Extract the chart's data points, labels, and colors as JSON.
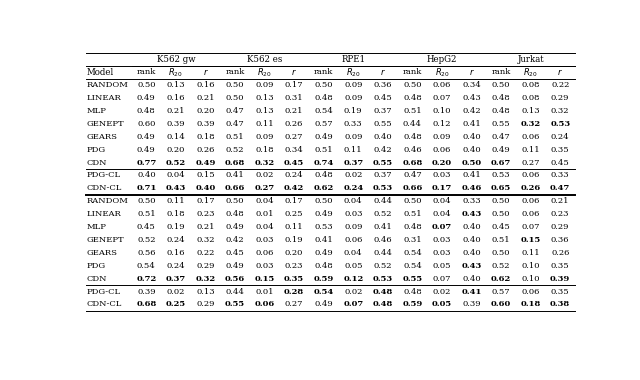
{
  "col_groups": [
    "K562 gw",
    "K562 es",
    "RPE1",
    "HepG2",
    "Jurkat"
  ],
  "rows_section1": [
    [
      "RANDOM",
      "0.50",
      "0.13",
      "0.16",
      "0.50",
      "0.09",
      "0.17",
      "0.50",
      "0.09",
      "0.36",
      "0.50",
      "0.06",
      "0.34",
      "0.50",
      "0.08",
      "0.22"
    ],
    [
      "LINEAR",
      "0.49",
      "0.16",
      "0.21",
      "0.50",
      "0.13",
      "0.31",
      "0.48",
      "0.09",
      "0.45",
      "0.48",
      "0.07",
      "0.43",
      "0.48",
      "0.08",
      "0.29"
    ],
    [
      "MLP",
      "0.48",
      "0.21",
      "0.20",
      "0.47",
      "0.13",
      "0.21",
      "0.54",
      "0.19",
      "0.37",
      "0.51",
      "0.10",
      "0.42",
      "0.48",
      "0.13",
      "0.32"
    ],
    [
      "GENEPT",
      "0.60",
      "0.39",
      "0.39",
      "0.47",
      "0.11",
      "0.26",
      "0.57",
      "0.33",
      "0.55",
      "0.44",
      "0.12",
      "0.41",
      "0.55",
      "0.32",
      "0.53"
    ],
    [
      "GEARS",
      "0.49",
      "0.14",
      "0.18",
      "0.51",
      "0.09",
      "0.27",
      "0.49",
      "0.09",
      "0.40",
      "0.48",
      "0.09",
      "0.40",
      "0.47",
      "0.06",
      "0.24"
    ],
    [
      "PDG",
      "0.49",
      "0.20",
      "0.26",
      "0.52",
      "0.18",
      "0.34",
      "0.51",
      "0.11",
      "0.42",
      "0.46",
      "0.06",
      "0.40",
      "0.49",
      "0.11",
      "0.35"
    ],
    [
      "CDN",
      "0.77",
      "0.52",
      "0.49",
      "0.68",
      "0.32",
      "0.45",
      "0.74",
      "0.37",
      "0.55",
      "0.68",
      "0.20",
      "0.50",
      "0.67",
      "0.27",
      "0.45"
    ]
  ],
  "bold_section1": [
    [
      false,
      false,
      false,
      false,
      false,
      false,
      false,
      false,
      false,
      false,
      false,
      false,
      false,
      false,
      false,
      false
    ],
    [
      false,
      false,
      false,
      false,
      false,
      false,
      false,
      false,
      false,
      false,
      false,
      false,
      false,
      false,
      false,
      false
    ],
    [
      false,
      false,
      false,
      false,
      false,
      false,
      false,
      false,
      false,
      false,
      false,
      false,
      false,
      false,
      false,
      false
    ],
    [
      false,
      false,
      false,
      false,
      false,
      false,
      false,
      false,
      false,
      false,
      false,
      false,
      false,
      false,
      true,
      true
    ],
    [
      false,
      false,
      false,
      false,
      false,
      false,
      false,
      false,
      false,
      false,
      false,
      false,
      false,
      false,
      false,
      false
    ],
    [
      false,
      false,
      false,
      false,
      false,
      false,
      false,
      false,
      false,
      false,
      false,
      false,
      false,
      false,
      false,
      false
    ],
    [
      false,
      true,
      true,
      true,
      true,
      true,
      true,
      true,
      true,
      true,
      true,
      true,
      true,
      true,
      false,
      false
    ]
  ],
  "rows_section2": [
    [
      "PDG-CL",
      "0.40",
      "0.04",
      "0.15",
      "0.41",
      "0.02",
      "0.24",
      "0.48",
      "0.02",
      "0.37",
      "0.47",
      "0.03",
      "0.41",
      "0.53",
      "0.06",
      "0.33"
    ],
    [
      "CDN-CL",
      "0.71",
      "0.43",
      "0.40",
      "0.66",
      "0.27",
      "0.42",
      "0.62",
      "0.24",
      "0.53",
      "0.66",
      "0.17",
      "0.46",
      "0.65",
      "0.26",
      "0.47"
    ]
  ],
  "bold_section2": [
    [
      false,
      false,
      false,
      false,
      false,
      false,
      false,
      false,
      false,
      false,
      false,
      false,
      false,
      false,
      false,
      false
    ],
    [
      false,
      true,
      true,
      true,
      true,
      true,
      true,
      true,
      true,
      true,
      true,
      true,
      true,
      true,
      true,
      true
    ]
  ],
  "rows_section3": [
    [
      "RANDOM",
      "0.50",
      "0.11",
      "0.17",
      "0.50",
      "0.04",
      "0.17",
      "0.50",
      "0.04",
      "0.44",
      "0.50",
      "0.04",
      "0.33",
      "0.50",
      "0.06",
      "0.21"
    ],
    [
      "LINEAR",
      "0.51",
      "0.18",
      "0.23",
      "0.48",
      "0.01",
      "0.25",
      "0.49",
      "0.03",
      "0.52",
      "0.51",
      "0.04",
      "0.43",
      "0.50",
      "0.06",
      "0.23"
    ],
    [
      "MLP",
      "0.45",
      "0.19",
      "0.21",
      "0.49",
      "0.04",
      "0.11",
      "0.53",
      "0.09",
      "0.41",
      "0.48",
      "0.07",
      "0.40",
      "0.45",
      "0.07",
      "0.29"
    ],
    [
      "GENEPT",
      "0.52",
      "0.24",
      "0.32",
      "0.42",
      "0.03",
      "0.19",
      "0.41",
      "0.06",
      "0.46",
      "0.31",
      "0.03",
      "0.40",
      "0.51",
      "0.15",
      "0.36"
    ],
    [
      "GEARS",
      "0.56",
      "0.16",
      "0.22",
      "0.45",
      "0.06",
      "0.20",
      "0.49",
      "0.04",
      "0.44",
      "0.54",
      "0.03",
      "0.40",
      "0.50",
      "0.11",
      "0.26"
    ],
    [
      "PDG",
      "0.54",
      "0.24",
      "0.29",
      "0.49",
      "0.03",
      "0.23",
      "0.48",
      "0.05",
      "0.52",
      "0.54",
      "0.05",
      "0.43",
      "0.52",
      "0.10",
      "0.35"
    ],
    [
      "CDN",
      "0.72",
      "0.37",
      "0.32",
      "0.56",
      "0.15",
      "0.35",
      "0.59",
      "0.12",
      "0.53",
      "0.55",
      "0.07",
      "0.40",
      "0.62",
      "0.10",
      "0.39"
    ]
  ],
  "bold_section3": [
    [
      false,
      false,
      false,
      false,
      false,
      false,
      false,
      false,
      false,
      false,
      false,
      false,
      false,
      false,
      false,
      false
    ],
    [
      false,
      false,
      false,
      false,
      false,
      false,
      false,
      false,
      false,
      false,
      false,
      false,
      true,
      false,
      false,
      false
    ],
    [
      false,
      false,
      false,
      false,
      false,
      false,
      false,
      false,
      false,
      false,
      false,
      true,
      false,
      false,
      false,
      false
    ],
    [
      false,
      false,
      false,
      false,
      false,
      false,
      false,
      false,
      false,
      false,
      false,
      false,
      false,
      false,
      true,
      false
    ],
    [
      false,
      false,
      false,
      false,
      false,
      false,
      false,
      false,
      false,
      false,
      false,
      false,
      false,
      false,
      false,
      false
    ],
    [
      false,
      false,
      false,
      false,
      false,
      false,
      false,
      false,
      false,
      false,
      false,
      false,
      true,
      false,
      false,
      false
    ],
    [
      false,
      true,
      true,
      true,
      true,
      true,
      true,
      true,
      true,
      true,
      true,
      false,
      false,
      true,
      false,
      true
    ]
  ],
  "rows_section4": [
    [
      "PDG-CL",
      "0.39",
      "0.02",
      "0.13",
      "0.44",
      "0.01",
      "0.28",
      "0.54",
      "0.02",
      "0.48",
      "0.48",
      "0.02",
      "0.41",
      "0.57",
      "0.06",
      "0.35"
    ],
    [
      "CDN-CL",
      "0.68",
      "0.25",
      "0.29",
      "0.55",
      "0.06",
      "0.27",
      "0.49",
      "0.07",
      "0.48",
      "0.59",
      "0.05",
      "0.39",
      "0.60",
      "0.18",
      "0.38"
    ]
  ],
  "bold_section4": [
    [
      false,
      false,
      false,
      false,
      false,
      false,
      true,
      true,
      false,
      true,
      false,
      false,
      true,
      false,
      false,
      false
    ],
    [
      false,
      true,
      true,
      false,
      true,
      true,
      false,
      false,
      true,
      true,
      true,
      true,
      false,
      true,
      true,
      true
    ]
  ]
}
